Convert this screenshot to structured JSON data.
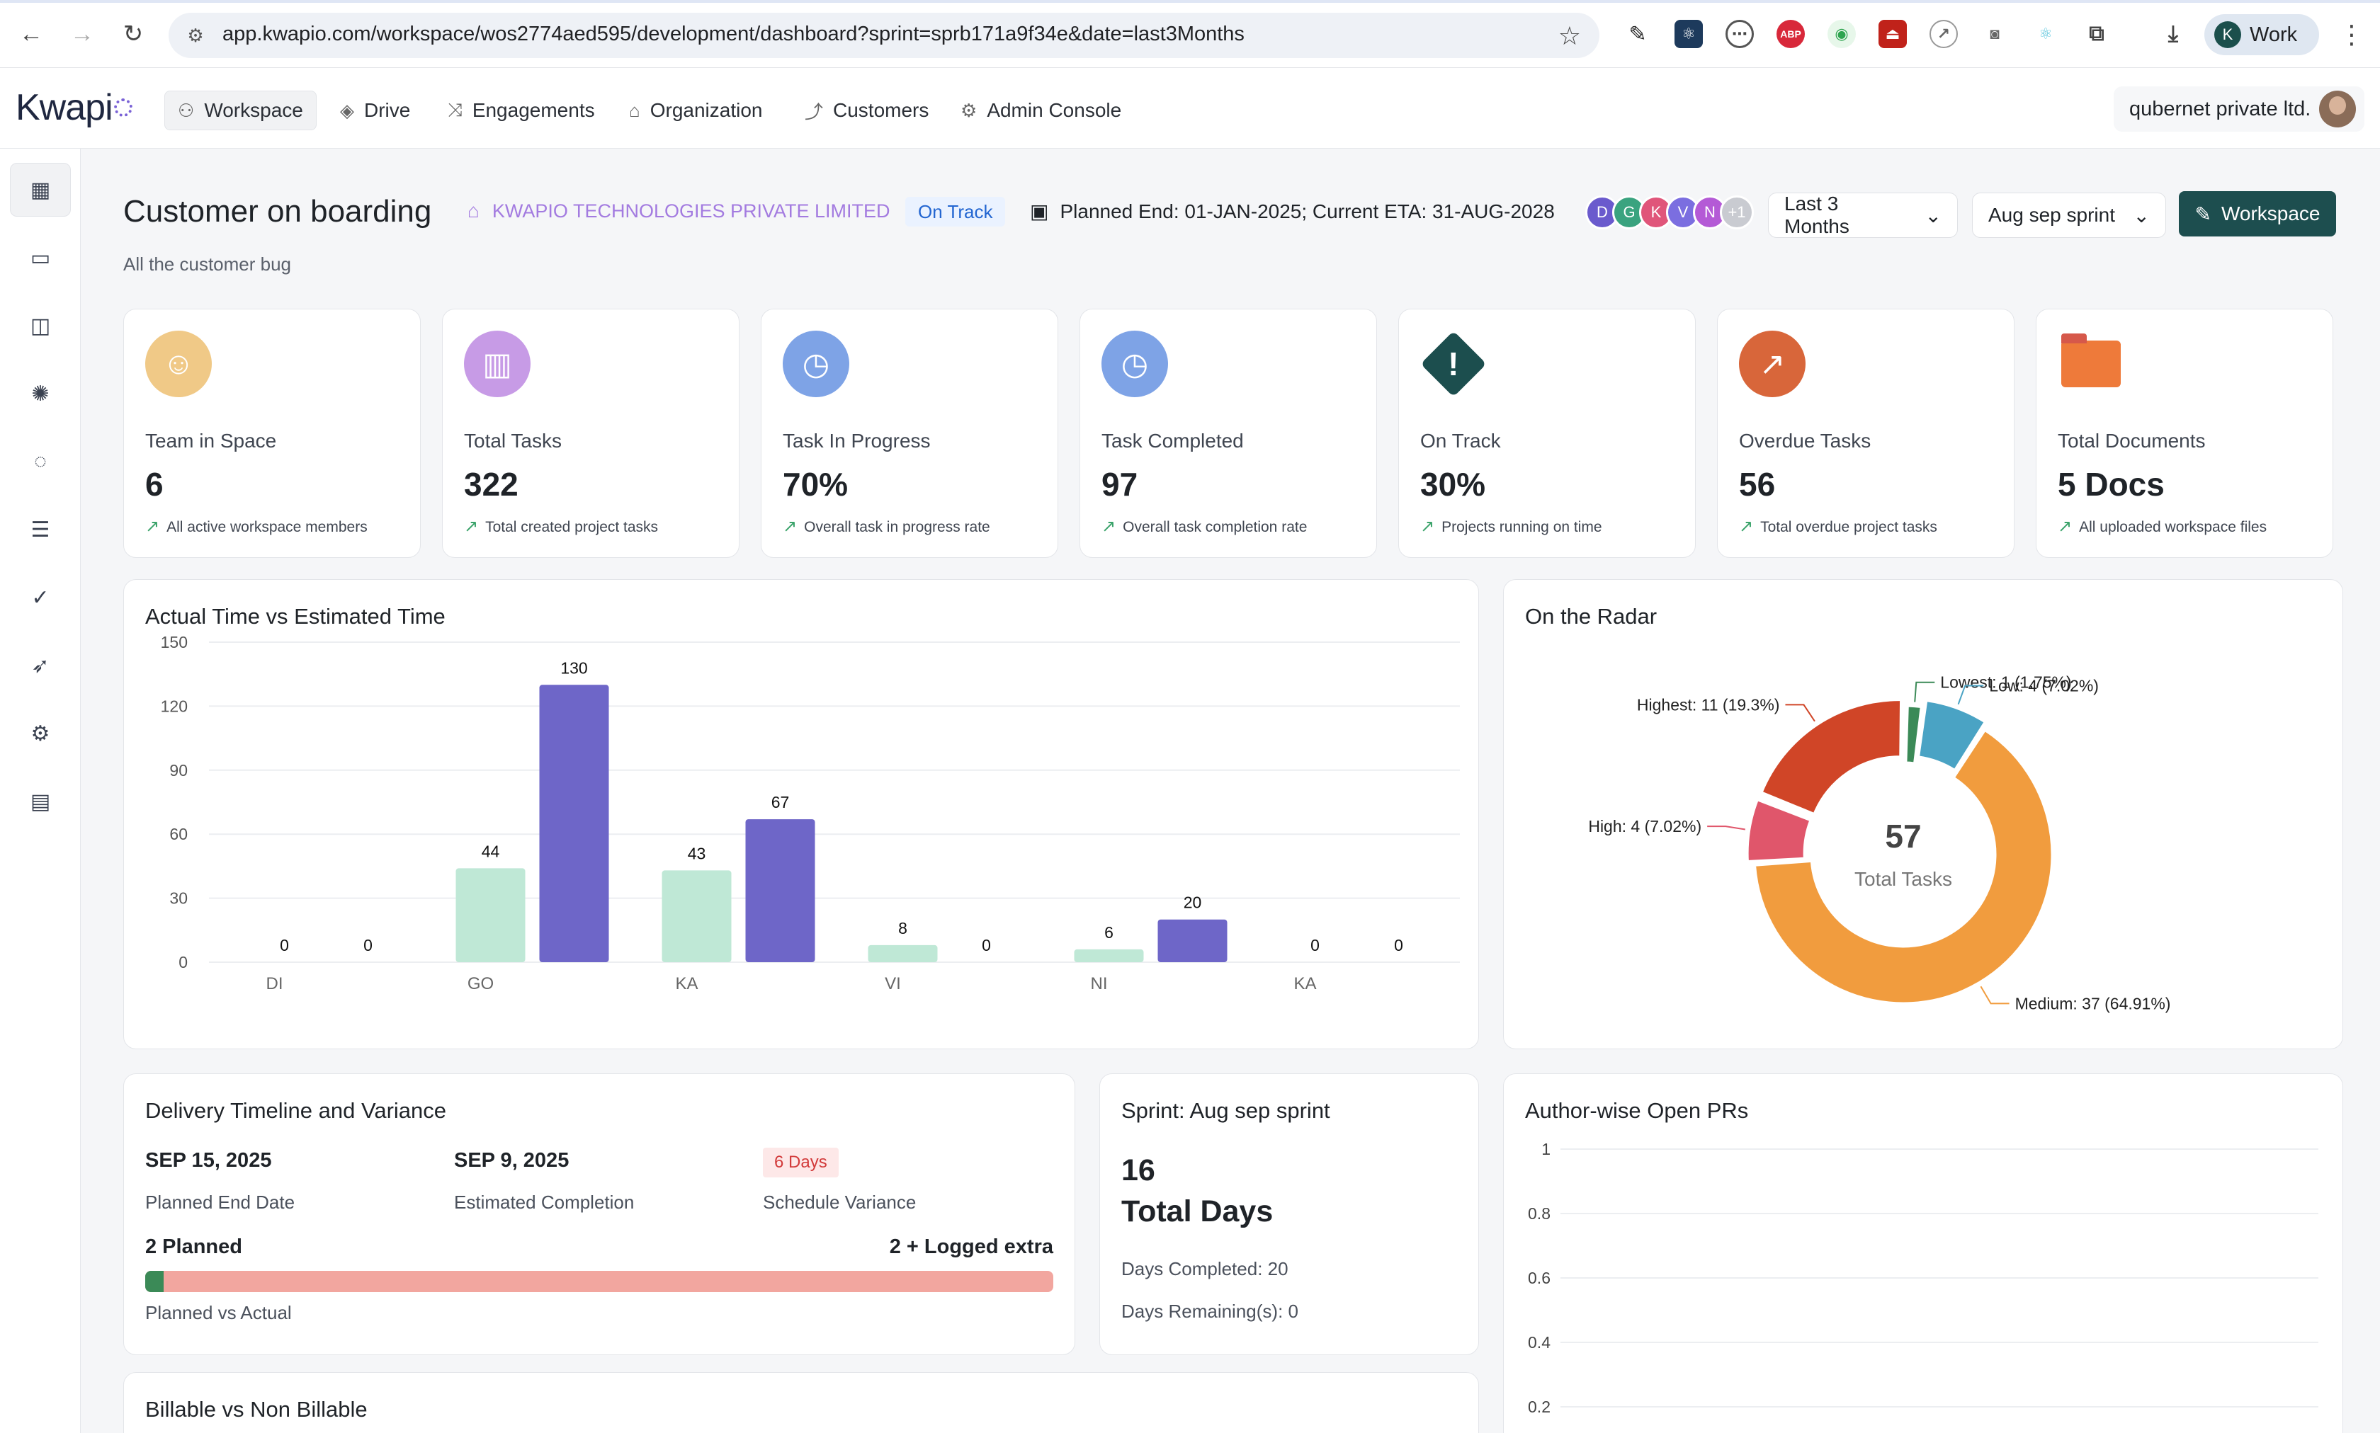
{
  "browser": {
    "url": "app.kwapio.com/workspace/wos2774aed595/development/dashboard?sprint=sprb171a9f34e&date=last3Months",
    "profile_initial": "K",
    "profile_label": "Work"
  },
  "app": {
    "logo": "Kwapi",
    "nav": [
      {
        "label": "Workspace",
        "icon": "workspace-icon"
      },
      {
        "label": "Drive",
        "icon": "drive-icon"
      },
      {
        "label": "Engagements",
        "icon": "engagements-icon"
      },
      {
        "label": "Organization",
        "icon": "organization-icon"
      },
      {
        "label": "Customers",
        "icon": "customers-icon"
      },
      {
        "label": "Admin Console",
        "icon": "admin-console-icon"
      }
    ],
    "org_name": "qubernet private ltd."
  },
  "header": {
    "title": "Customer on boarding",
    "company": "KWAPIO TECHNOLOGIES PRIVATE LIMITED",
    "status": "On Track",
    "planned": "Planned End: 01-JAN-2025; Current ETA: 31-AUG-2028",
    "avatars": [
      {
        "initial": "D",
        "color": "#6a5acd"
      },
      {
        "initial": "G",
        "color": "#3aa37f"
      },
      {
        "initial": "K",
        "color": "#e0557a"
      },
      {
        "initial": "V",
        "color": "#7b6ee0"
      },
      {
        "initial": "N",
        "color": "#b45ad6"
      }
    ],
    "avatars_more": "+1",
    "date_filter": "Last 3 Months",
    "sprint_filter": "Aug sep sprint",
    "workspace_button": "Workspace",
    "subtitle": "All the customer bug"
  },
  "stats": [
    {
      "label": "Team in Space",
      "value": "6",
      "note": "All active workspace members",
      "icon": "person-icon",
      "color": "#f0c987"
    },
    {
      "label": "Total Tasks",
      "value": "322",
      "note": "Total created project tasks",
      "icon": "bar-chart-icon",
      "color": "#c79be6"
    },
    {
      "label": "Task In Progress",
      "value": "70%",
      "note": "Overall task in progress rate",
      "icon": "clock-icon",
      "color": "#7ea3e6"
    },
    {
      "label": "Task Completed",
      "value": "97",
      "note": "Overall task completion rate",
      "icon": "clock-icon",
      "color": "#7ea3e6"
    },
    {
      "label": "On Track",
      "value": "30%",
      "note": "Projects running on time",
      "icon": "alert-diamond-icon",
      "color": "#1c4e4e"
    },
    {
      "label": "Overdue Tasks",
      "value": "56",
      "note": "Total overdue project tasks",
      "icon": "trending-up-icon",
      "color": "#d8663a"
    },
    {
      "label": "Total Documents",
      "value": "5 Docs",
      "note": "All uploaded workspace files",
      "icon": "folder-icon",
      "color": "#ee7a3a"
    }
  ],
  "chart_data": [
    {
      "type": "bar",
      "title": "Actual Time vs Estimated Time",
      "categories": [
        "DI",
        "GO",
        "KA",
        "VI",
        "NI",
        "KA"
      ],
      "series": [
        {
          "values": [
            0,
            44,
            43,
            8,
            6,
            0
          ],
          "color": "#bfe8d6"
        },
        {
          "values": [
            0,
            130,
            67,
            0,
            20,
            0
          ],
          "color": "#6e66c8"
        }
      ],
      "yticks": [
        0,
        30,
        60,
        90,
        120,
        150
      ],
      "ylim": [
        0,
        150
      ],
      "grid": true
    },
    {
      "type": "pie",
      "title": "On the Radar",
      "center_value": "57",
      "center_label": "Total Tasks",
      "slices": [
        {
          "label": "Lowest: 1 (1.75%)",
          "value": 1,
          "color": "#3b8a57"
        },
        {
          "label": "Low: 4 (7.02%)",
          "value": 4,
          "color": "#4aa3c4"
        },
        {
          "label": "Medium: 37 (64.91%)",
          "value": 37,
          "color": "#f19c3e"
        },
        {
          "label": "High: 4 (7.02%)",
          "value": 4,
          "color": "#e0566b"
        },
        {
          "label": "Highest: 11 (19.3%)",
          "value": 11,
          "color": "#d04527"
        }
      ]
    },
    {
      "type": "line",
      "title": "Author-wise Open PRs",
      "yticks": [
        "1",
        "0.8",
        "0.6",
        "0.4",
        "0.2"
      ],
      "series": []
    }
  ],
  "delivery": {
    "title": "Delivery Timeline and Variance",
    "planned_end_date": "SEP 15, 2025",
    "planned_end_label": "Planned End Date",
    "estimated_date": "SEP 9, 2025",
    "estimated_label": "Estimated Completion",
    "variance_value": "6 Days",
    "variance_label": "Schedule Variance",
    "planned_text": "2 Planned",
    "extra_text": "2 + Logged extra",
    "planned_fraction": 0.02,
    "bar_caption": "Planned vs Actual"
  },
  "sprint": {
    "title": "Sprint: Aug sep sprint",
    "days": "16",
    "days_label": "Total Days",
    "completed": "Days Completed: 20",
    "remaining": "Days Remaining(s): 0"
  },
  "billable": {
    "title": "Billable vs Non Billable"
  }
}
